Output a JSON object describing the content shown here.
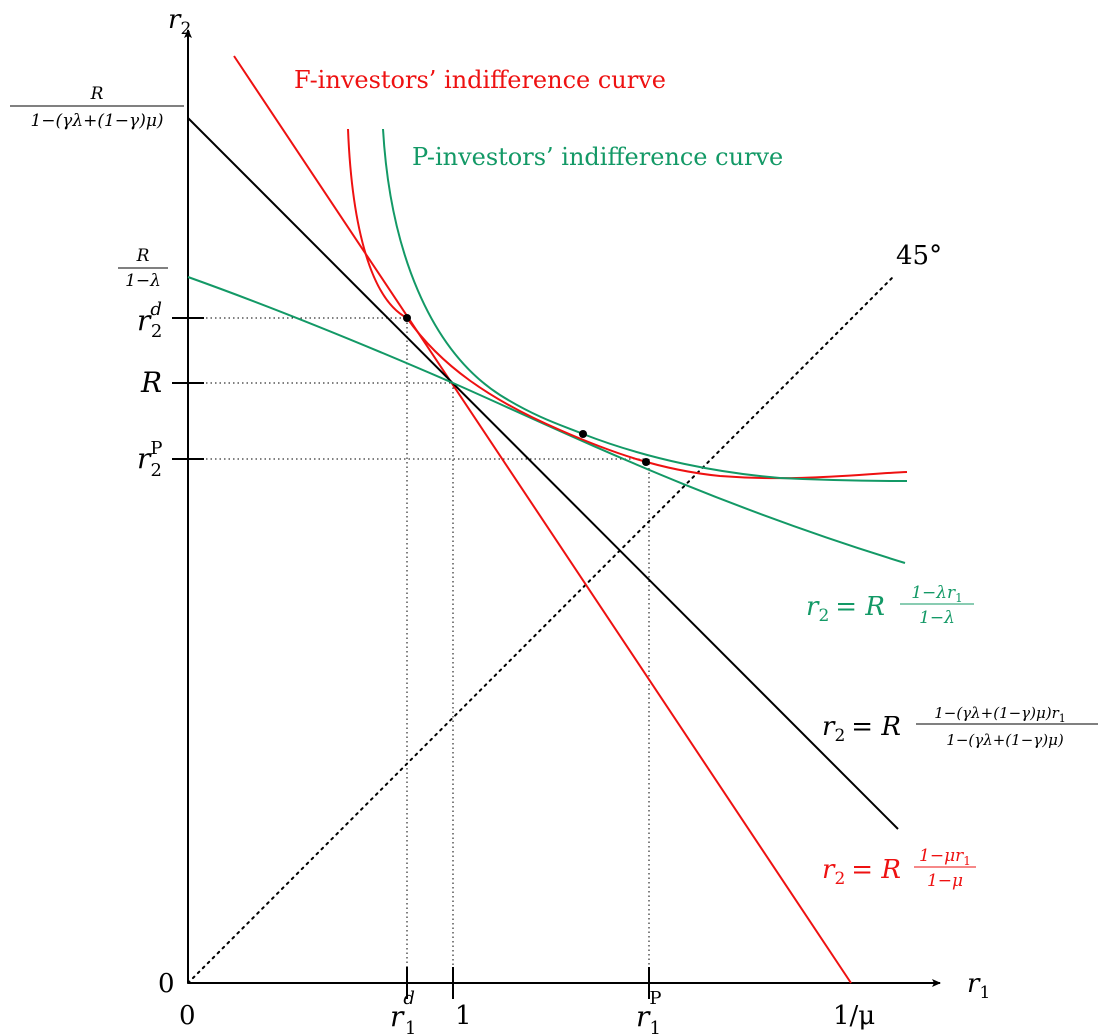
{
  "colors": {
    "black": "#000000",
    "red": "#ee1111",
    "green": "#139966"
  },
  "axes": {
    "x_label_base": "r",
    "x_label_sub": "1",
    "y_label_base": "r",
    "y_label_sub": "2",
    "x_ticks": {
      "zero": "0",
      "r1d_base": "r",
      "r1d_sup": "d",
      "r1d_sub": "1",
      "one": "1",
      "r1P_base": "r",
      "r1P_sup": "P",
      "r1P_sub": "1",
      "inv_mu": "1/μ"
    },
    "y_ticks": {
      "zero": "0",
      "R": "R",
      "r2P_base": "r",
      "r2P_sup": "P",
      "r2P_sub": "2",
      "r2d_base": "r",
      "r2d_sup": "d",
      "r2d_sub": "2",
      "frac1_num": "R",
      "frac1_den": "1−λ",
      "frac2_num": "R",
      "frac2_den": "1−(γλ+(1−γ)μ)"
    }
  },
  "labels": {
    "angle45": "45°",
    "f_curve": "F-investors’ indifference curve",
    "p_curve": "P-investors’ indifference curve",
    "eq_green": {
      "lhs": "r",
      "lhs_sub": "2",
      "eq": "= R",
      "num": "1−λr",
      "num_sub": "1",
      "den": "1−λ"
    },
    "eq_black": {
      "lhs": "r",
      "lhs_sub": "2",
      "eq": "= R",
      "num": "1−(γλ+(1−γ)μ)r",
      "num_sub": "1",
      "den": "1−(γλ+(1−γ)μ)"
    },
    "eq_red": {
      "lhs": "r",
      "lhs_sub": "2",
      "eq": "= R",
      "num": "1−μr",
      "num_sub": "1",
      "den": "1−μ"
    }
  }
}
